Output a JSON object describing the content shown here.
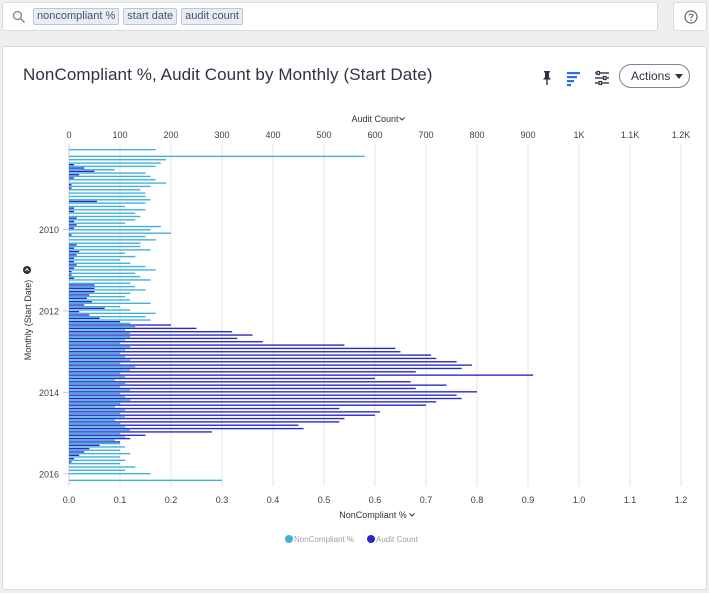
{
  "search": {
    "tokens": [
      "noncompliant %",
      "start date",
      "audit count"
    ]
  },
  "header": {
    "title": "NonCompliant %, Audit Count by Monthly (Start Date)",
    "actions_label": "Actions"
  },
  "icons": {
    "search": "search-icon",
    "help": "help-icon",
    "pin": "pin-icon",
    "chart_type": "bar-chart-icon",
    "settings": "sliders-icon",
    "sort": "sort-icon"
  },
  "colors": {
    "noncompliant": "#3fb0dc",
    "audit_count": "#2a27c9",
    "accent": "#2f6fd8"
  },
  "chart_data": {
    "type": "bar",
    "orientation": "horizontal",
    "title": "NonCompliant %, Audit Count by Monthly (Start Date)",
    "ylabel": "Monthly (Start Date)",
    "y_tick_labels": [
      "2010",
      "2012",
      "2014",
      "2016"
    ],
    "y_range": [
      "2008-01",
      "2016-04"
    ],
    "top_axis": {
      "label": "Audit Count",
      "ticks": [
        "0",
        "100",
        "200",
        "300",
        "400",
        "500",
        "600",
        "700",
        "800",
        "900",
        "1K",
        "1.1K",
        "1.2K"
      ],
      "range": [
        0,
        1200
      ]
    },
    "bottom_axis": {
      "label": "NonCompliant %",
      "ticks": [
        "0.0",
        "0.1",
        "0.2",
        "0.3",
        "0.4",
        "0.5",
        "0.6",
        "0.7",
        "0.8",
        "0.9",
        "1.0",
        "1.1",
        "1.2"
      ],
      "range": [
        0,
        1.2
      ]
    },
    "grid": true,
    "legend_position": "bottom",
    "series": [
      {
        "name": "NonCompliant %",
        "axis": "bottom",
        "values": [
          0.17,
          0.0,
          0.58,
          0.19,
          0.18,
          0.17,
          0.09,
          0.15,
          0.16,
          0.17,
          0.19,
          0.16,
          0.14,
          0.15,
          0.15,
          0.16,
          0.15,
          0.11,
          0.15,
          0.13,
          0.14,
          0.13,
          0.11,
          0.18,
          0.16,
          0.2,
          0.15,
          0.17,
          0.14,
          0.14,
          0.16,
          0.11,
          0.13,
          0.1,
          0.12,
          0.15,
          0.17,
          0.13,
          0.14,
          0.16,
          0.12,
          0.13,
          0.15,
          0.12,
          0.11,
          0.12,
          0.16,
          0.1,
          0.12,
          0.17,
          0.15,
          0.16,
          0.12,
          0.13,
          0.11,
          0.12,
          0.12,
          0.11,
          0.1,
          0.12,
          0.11,
          0.1,
          0.11,
          0.12,
          0.1,
          0.13,
          0.12,
          0.1,
          0.11,
          0.09,
          0.11,
          0.1,
          0.12,
          0.1,
          0.11,
          0.12,
          0.1,
          0.09,
          0.11,
          0.1,
          0.11,
          0.09,
          0.1,
          0.11,
          0.12,
          0.1,
          0.11,
          0.09,
          0.1,
          0.11,
          0.1,
          0.12,
          0.1,
          0.11,
          0.1,
          0.13,
          0.11,
          0.16,
          0.0,
          0.3
        ]
      },
      {
        "name": "Audit Count",
        "axis": "top",
        "values": [
          0,
          0,
          0,
          0,
          10,
          30,
          50,
          20,
          10,
          0,
          5,
          5,
          0,
          0,
          0,
          55,
          0,
          10,
          10,
          0,
          15,
          10,
          15,
          10,
          0,
          5,
          0,
          0,
          15,
          10,
          20,
          15,
          10,
          10,
          15,
          10,
          5,
          5,
          10,
          0,
          50,
          50,
          50,
          40,
          35,
          45,
          30,
          70,
          20,
          40,
          60,
          100,
          200,
          250,
          320,
          360,
          330,
          380,
          540,
          640,
          650,
          710,
          720,
          760,
          790,
          770,
          680,
          910,
          600,
          670,
          740,
          680,
          800,
          760,
          770,
          720,
          700,
          530,
          610,
          600,
          540,
          530,
          450,
          460,
          280,
          150,
          120,
          100,
          60,
          40,
          30,
          20,
          10,
          5,
          0,
          0,
          0,
          0,
          0,
          0
        ]
      }
    ]
  }
}
